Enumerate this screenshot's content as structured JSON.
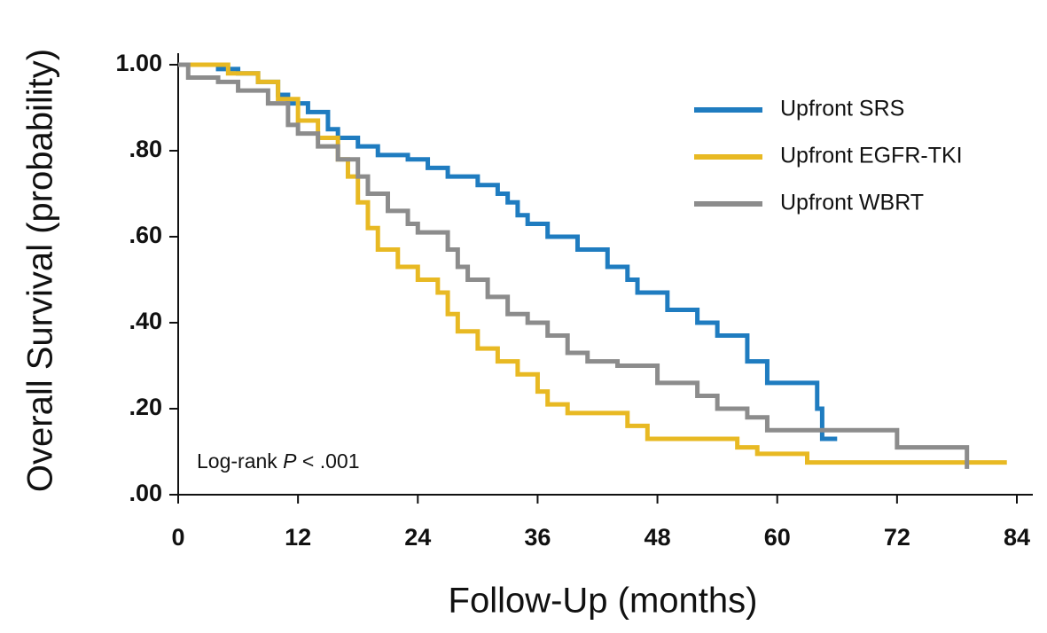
{
  "chart_data": {
    "type": "step",
    "xlabel": "Follow-Up (months)",
    "ylabel": "Overall Survival (probability)",
    "xlim": [
      0,
      84
    ],
    "ylim": [
      0,
      1
    ],
    "xticks": [
      0,
      12,
      24,
      36,
      48,
      60,
      72,
      84
    ],
    "yticks": [
      {
        "value": 0,
        "label": ".00"
      },
      {
        "value": 0.2,
        "label": ".20"
      },
      {
        "value": 0.4,
        "label": ".40"
      },
      {
        "value": 0.6,
        "label": ".60"
      },
      {
        "value": 0.8,
        "label": ".80"
      },
      {
        "value": 1,
        "label": "1.00"
      }
    ],
    "annotation": [
      "Log-rank ",
      "P",
      " < .001"
    ],
    "legend": "upper right",
    "series": [
      {
        "name": "Upfront SRS",
        "color": "#1f7cc0",
        "x": [
          0,
          4,
          6,
          8,
          10,
          11,
          13,
          15,
          16,
          18,
          20,
          23,
          25,
          27,
          30,
          32,
          33,
          34,
          35,
          37,
          40,
          43,
          45,
          46,
          49,
          52,
          54,
          57,
          59,
          64,
          64.5,
          66
        ],
        "values": [
          1.0,
          0.99,
          0.98,
          0.96,
          0.93,
          0.91,
          0.89,
          0.85,
          0.83,
          0.81,
          0.79,
          0.78,
          0.76,
          0.74,
          0.72,
          0.7,
          0.68,
          0.65,
          0.63,
          0.6,
          0.57,
          0.53,
          0.5,
          0.47,
          0.43,
          0.4,
          0.37,
          0.31,
          0.26,
          0.2,
          0.13,
          0.13
        ]
      },
      {
        "name": "Upfront EGFR-TKI",
        "color": "#e8b923",
        "x": [
          0,
          5,
          8,
          10,
          12,
          14,
          16,
          17,
          18,
          19,
          20,
          22,
          24,
          26,
          27,
          28,
          30,
          32,
          34,
          36,
          37,
          39,
          45,
          47,
          56,
          58,
          63,
          83
        ],
        "values": [
          1.0,
          0.98,
          0.96,
          0.92,
          0.87,
          0.83,
          0.78,
          0.74,
          0.68,
          0.62,
          0.57,
          0.53,
          0.5,
          0.47,
          0.42,
          0.38,
          0.34,
          0.31,
          0.28,
          0.24,
          0.21,
          0.19,
          0.16,
          0.13,
          0.11,
          0.095,
          0.075,
          0.075
        ]
      },
      {
        "name": "Upfront WBRT",
        "color": "#8c8c8c",
        "x": [
          0,
          1,
          4,
          6,
          9,
          11,
          12,
          14,
          16,
          18,
          19,
          21,
          23,
          24,
          27,
          28,
          29,
          31,
          33,
          35,
          37,
          39,
          41,
          44,
          48,
          52,
          54,
          57,
          59,
          72,
          79,
          79
        ],
        "values": [
          1.0,
          0.97,
          0.96,
          0.94,
          0.91,
          0.86,
          0.84,
          0.81,
          0.78,
          0.74,
          0.7,
          0.66,
          0.63,
          0.61,
          0.57,
          0.53,
          0.5,
          0.46,
          0.42,
          0.4,
          0.37,
          0.33,
          0.31,
          0.3,
          0.26,
          0.23,
          0.2,
          0.18,
          0.15,
          0.11,
          0.11,
          0.06
        ]
      }
    ]
  }
}
